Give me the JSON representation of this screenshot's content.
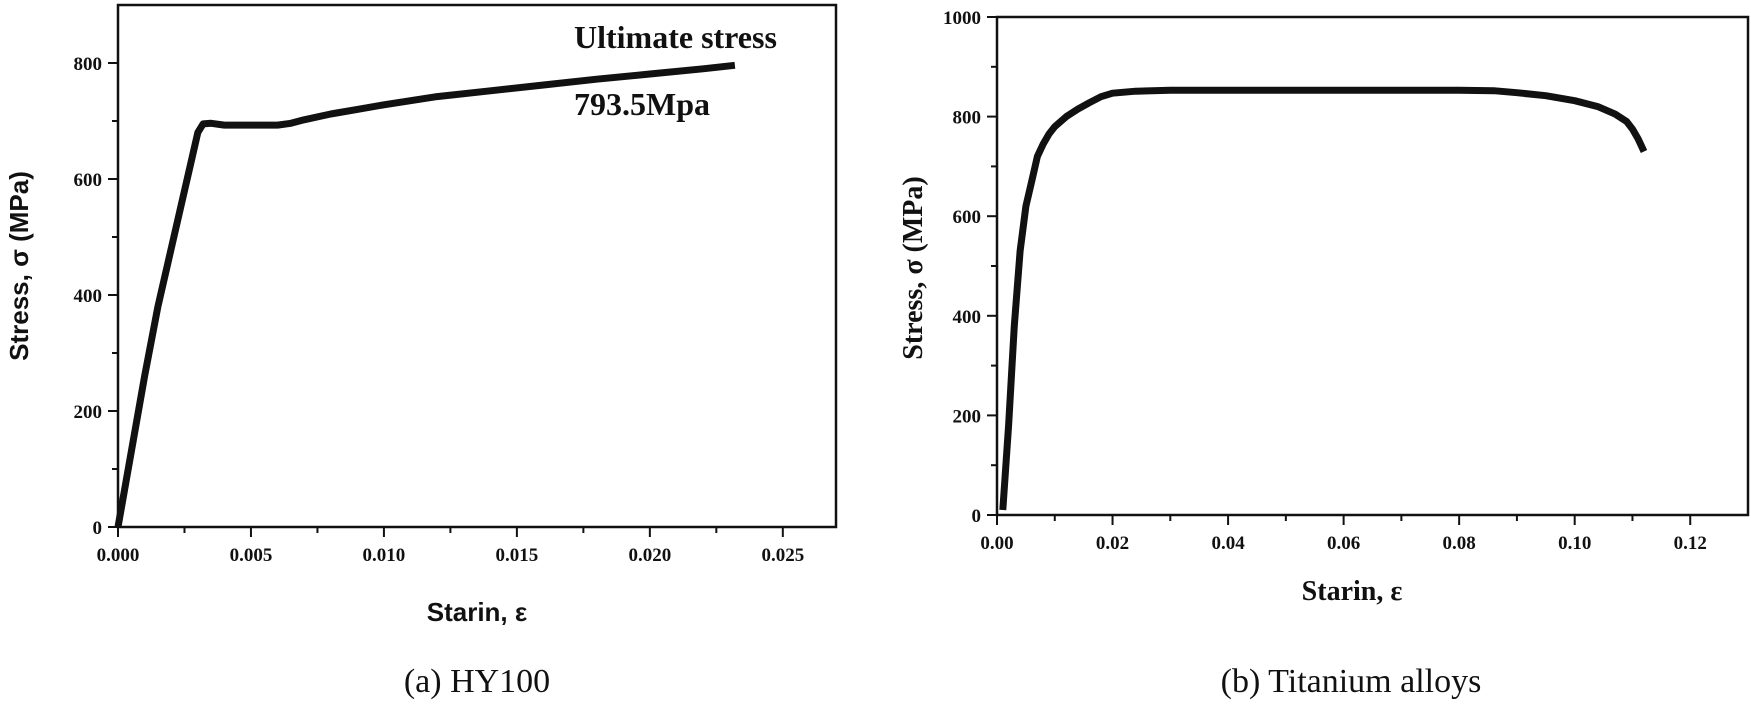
{
  "chart_data": [
    {
      "type": "line",
      "caption": "(a) HY100",
      "xlabel": "Starin, ε",
      "ylabel": "Stress, σ (MPa)",
      "xlim": [
        0,
        0.027
      ],
      "ylim": [
        0,
        900
      ],
      "xticks": [
        0.0,
        0.005,
        0.01,
        0.015,
        0.02,
        0.025
      ],
      "xtick_labels": [
        "0.000",
        "0.005",
        "0.010",
        "0.015",
        "0.020",
        "0.025"
      ],
      "yticks": [
        0,
        200,
        400,
        600,
        800
      ],
      "ytick_labels": [
        "0",
        "200",
        "400",
        "600",
        "800"
      ],
      "annotation_lines": [
        "Ultimate stress",
        "793.5Mpa"
      ],
      "series": [
        {
          "name": "HY100",
          "x": [
            0.0,
            0.0005,
            0.001,
            0.0015,
            0.002,
            0.0025,
            0.0028,
            0.003,
            0.0032,
            0.0035,
            0.004,
            0.005,
            0.006,
            0.0065,
            0.007,
            0.008,
            0.009,
            0.01,
            0.012,
            0.014,
            0.016,
            0.018,
            0.02,
            0.022,
            0.0232
          ],
          "y": [
            0,
            130,
            260,
            380,
            480,
            580,
            640,
            680,
            695,
            696,
            693,
            693,
            693,
            696,
            702,
            712,
            720,
            728,
            742,
            752,
            762,
            772,
            781,
            790,
            796
          ]
        }
      ]
    },
    {
      "type": "line",
      "caption": "(b) Titanium alloys",
      "xlabel": "Starin, ε",
      "ylabel": "Stress, σ (MPa)",
      "xlim": [
        0,
        0.13
      ],
      "ylim": [
        0,
        1000
      ],
      "xticks": [
        0.0,
        0.02,
        0.04,
        0.06,
        0.08,
        0.1,
        0.12
      ],
      "xtick_labels": [
        "0.00",
        "0.02",
        "0.04",
        "0.06",
        "0.08",
        "0.10",
        "0.12"
      ],
      "yticks": [
        0,
        200,
        400,
        600,
        800,
        1000
      ],
      "ytick_labels": [
        "0",
        "200",
        "400",
        "600",
        "800",
        "1000"
      ],
      "series": [
        {
          "name": "Titanium alloys",
          "x": [
            0.001,
            0.002,
            0.003,
            0.004,
            0.005,
            0.006,
            0.007,
            0.008,
            0.009,
            0.01,
            0.012,
            0.014,
            0.016,
            0.018,
            0.02,
            0.024,
            0.03,
            0.04,
            0.05,
            0.06,
            0.07,
            0.08,
            0.086,
            0.09,
            0.095,
            0.1,
            0.104,
            0.107,
            0.109,
            0.11,
            0.111,
            0.112
          ],
          "y": [
            10,
            180,
            380,
            530,
            620,
            670,
            720,
            745,
            765,
            780,
            800,
            815,
            828,
            840,
            847,
            851,
            853,
            853,
            853,
            853,
            853,
            853,
            852,
            848,
            842,
            832,
            820,
            805,
            790,
            775,
            755,
            730
          ]
        }
      ]
    }
  ]
}
